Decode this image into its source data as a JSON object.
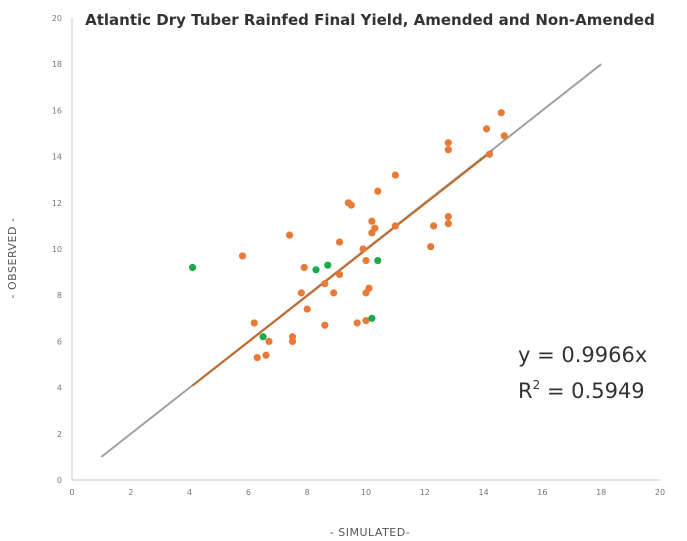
{
  "chart_data": {
    "type": "scatter",
    "title": "Atlantic Dry Tuber Rainfed Final Yield, Amended and Non-Amended",
    "xlabel": "- SIMULATED-",
    "ylabel": "- OBSERVED -",
    "xlim": [
      0,
      20
    ],
    "ylim": [
      0,
      20
    ],
    "x_ticks": [
      "0",
      "2",
      "4",
      "6",
      "8",
      "10",
      "12",
      "14",
      "16",
      "18",
      "20"
    ],
    "y_ticks": [
      "0",
      "2",
      "4",
      "6",
      "8",
      "10",
      "12",
      "14",
      "16",
      "18",
      "20"
    ],
    "grid": false,
    "legend": "none",
    "annotation": {
      "equation": "y = 0.9966x",
      "r2_prefix": "R",
      "r2_sup": "2",
      "r2_suffix": " = 0.5949"
    },
    "colors": {
      "non_amended": "#e87a35",
      "amended": "#1aaa4a",
      "one_to_one_line": "#a0a0a0",
      "trendline": "#c26a2a"
    },
    "one_to_one_line": {
      "from": [
        1,
        1
      ],
      "to": [
        18,
        18
      ]
    },
    "trendline": {
      "slope": 0.9966,
      "x_range": [
        4.1,
        14.3
      ]
    },
    "series": [
      {
        "color": "#e87a35",
        "points": [
          [
            5.8,
            9.7
          ],
          [
            6.2,
            6.8
          ],
          [
            6.3,
            5.3
          ],
          [
            6.6,
            5.4
          ],
          [
            6.7,
            6.0
          ],
          [
            7.4,
            10.6
          ],
          [
            7.5,
            6.2
          ],
          [
            7.5,
            6.0
          ],
          [
            7.8,
            8.1
          ],
          [
            7.9,
            9.2
          ],
          [
            8.0,
            7.4
          ],
          [
            8.6,
            8.5
          ],
          [
            8.6,
            6.7
          ],
          [
            8.9,
            8.1
          ],
          [
            9.1,
            8.9
          ],
          [
            9.1,
            10.3
          ],
          [
            9.4,
            12.0
          ],
          [
            9.5,
            11.9
          ],
          [
            9.7,
            6.8
          ],
          [
            9.9,
            10.0
          ],
          [
            10.0,
            6.9
          ],
          [
            10.0,
            8.1
          ],
          [
            10.0,
            9.5
          ],
          [
            10.1,
            8.3
          ],
          [
            10.2,
            11.2
          ],
          [
            10.2,
            10.7
          ],
          [
            10.3,
            10.9
          ],
          [
            10.4,
            12.5
          ],
          [
            11.0,
            11.0
          ],
          [
            11.0,
            13.2
          ],
          [
            12.2,
            10.1
          ],
          [
            12.3,
            11.0
          ],
          [
            12.8,
            14.3
          ],
          [
            12.8,
            14.6
          ],
          [
            12.8,
            11.4
          ],
          [
            12.8,
            11.1
          ],
          [
            14.1,
            15.2
          ],
          [
            14.2,
            14.1
          ],
          [
            14.6,
            15.9
          ],
          [
            14.7,
            14.9
          ]
        ]
      },
      {
        "color": "#1aaa4a",
        "points": [
          [
            4.1,
            9.2
          ],
          [
            6.5,
            6.2
          ],
          [
            8.3,
            9.1
          ],
          [
            8.7,
            9.3
          ],
          [
            10.2,
            7.0
          ],
          [
            10.4,
            9.5
          ]
        ]
      }
    ]
  }
}
